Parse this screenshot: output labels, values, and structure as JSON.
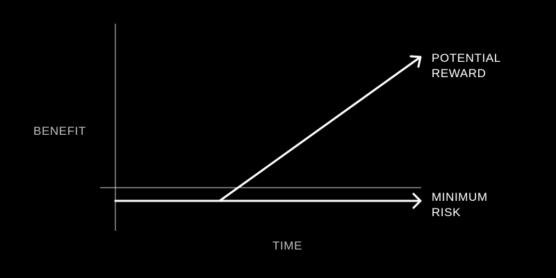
{
  "labels": {
    "y_axis": "BENEFIT",
    "x_axis": "TIME",
    "upper_arrow": [
      "POTENTIAL",
      "REWARD"
    ],
    "lower_arrow": [
      "MINIMUM",
      "RISK"
    ]
  },
  "colors": {
    "background": "#000000",
    "axis": "#d9d9d9",
    "arrow": "#ffffff",
    "axis_text": "#bfbfbf",
    "arrow_text": "#ffffff"
  }
}
